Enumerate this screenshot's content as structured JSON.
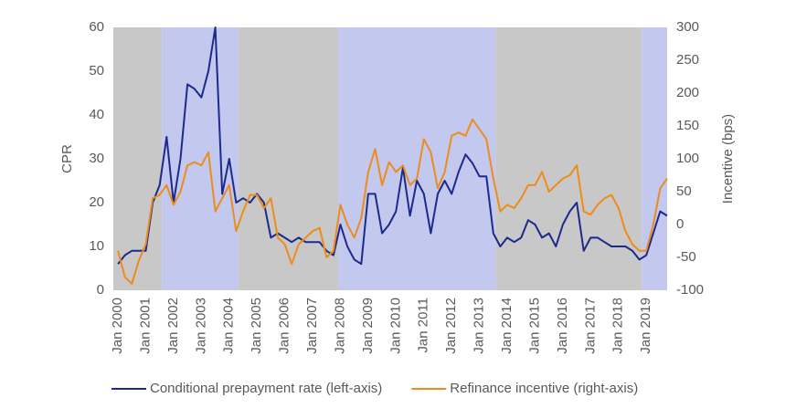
{
  "chart_data": {
    "type": "line",
    "y_label": "CPR",
    "y2_label": "Incentive (bps)",
    "x": [
      "2000-01",
      "2000-04",
      "2000-07",
      "2000-10",
      "2001-01",
      "2001-04",
      "2001-07",
      "2001-10",
      "2002-01",
      "2002-04",
      "2002-07",
      "2002-10",
      "2003-01",
      "2003-04",
      "2003-07",
      "2003-10",
      "2004-01",
      "2004-04",
      "2004-07",
      "2004-10",
      "2005-01",
      "2005-04",
      "2005-07",
      "2005-10",
      "2006-01",
      "2006-04",
      "2006-07",
      "2006-10",
      "2007-01",
      "2007-04",
      "2007-07",
      "2007-10",
      "2008-01",
      "2008-04",
      "2008-07",
      "2008-10",
      "2009-01",
      "2009-04",
      "2009-07",
      "2009-10",
      "2010-01",
      "2010-04",
      "2010-07",
      "2010-10",
      "2011-01",
      "2011-04",
      "2011-07",
      "2011-10",
      "2012-01",
      "2012-04",
      "2012-07",
      "2012-10",
      "2013-01",
      "2013-04",
      "2013-07",
      "2013-10",
      "2014-01",
      "2014-04",
      "2014-07",
      "2014-10",
      "2015-01",
      "2015-04",
      "2015-07",
      "2015-10",
      "2016-01",
      "2016-04",
      "2016-07",
      "2016-10",
      "2017-01",
      "2017-04",
      "2017-07",
      "2017-10",
      "2018-01",
      "2018-04",
      "2018-07",
      "2018-10",
      "2019-01",
      "2019-04",
      "2019-07",
      "2019-10"
    ],
    "series": [
      {
        "name": "Conditional prepayment rate (left-axis)",
        "color": "#1c2a8c",
        "values": [
          6,
          8,
          9,
          9,
          9,
          20,
          24,
          35,
          20,
          30,
          47,
          46,
          44,
          50,
          60,
          22,
          30,
          20,
          21,
          20,
          22,
          20,
          12,
          13,
          12,
          11,
          12,
          11,
          11,
          11,
          9,
          8,
          15,
          10,
          7,
          6,
          22,
          22,
          13,
          15,
          18,
          28,
          17,
          25,
          22,
          13,
          22,
          25,
          22,
          27,
          31,
          29,
          26,
          26,
          13,
          10,
          12,
          11,
          12,
          16,
          15,
          12,
          13,
          10,
          15,
          18,
          20,
          9,
          12,
          12,
          11,
          10,
          10,
          10,
          9,
          7,
          8,
          13,
          18,
          17
        ]
      },
      {
        "name": "Refinance incentive (right-axis)",
        "color": "#ed8c1c",
        "axis": "y2",
        "values": [
          -40,
          -80,
          -90,
          -55,
          -30,
          40,
          45,
          60,
          30,
          50,
          90,
          95,
          90,
          110,
          20,
          40,
          60,
          -10,
          20,
          45,
          45,
          25,
          40,
          -20,
          -30,
          -60,
          -30,
          -20,
          -10,
          -5,
          -50,
          -40,
          30,
          0,
          -20,
          10,
          80,
          115,
          60,
          95,
          80,
          90,
          60,
          70,
          130,
          110,
          55,
          80,
          135,
          140,
          135,
          160,
          145,
          130,
          70,
          20,
          30,
          25,
          40,
          60,
          60,
          80,
          50,
          60,
          70,
          75,
          90,
          20,
          15,
          30,
          40,
          45,
          25,
          -10,
          -30,
          -40,
          -40,
          0,
          55,
          70
        ]
      }
    ],
    "xlim": [
      "1999-11",
      "2019-10"
    ],
    "xticks": [
      {
        "value": "2000-01",
        "label": "Jan 2000"
      },
      {
        "value": "2001-01",
        "label": "Jan 2001"
      },
      {
        "value": "2002-01",
        "label": "Jan 2002"
      },
      {
        "value": "2003-01",
        "label": "Jan 2003"
      },
      {
        "value": "2004-01",
        "label": "Jan 2004"
      },
      {
        "value": "2005-01",
        "label": "Jan 2005"
      },
      {
        "value": "2006-01",
        "label": "Jan 2006"
      },
      {
        "value": "2007-01",
        "label": "Jan 2007"
      },
      {
        "value": "2008-01",
        "label": "Jan 2008"
      },
      {
        "value": "2009-01",
        "label": "Jan 2009"
      },
      {
        "value": "2010-01",
        "label": "Jan 2010"
      },
      {
        "value": "2011-01",
        "label": "Jan 2011"
      },
      {
        "value": "2012-01",
        "label": "Jan 2012"
      },
      {
        "value": "2013-01",
        "label": "Jan 2013"
      },
      {
        "value": "2014-01",
        "label": "Jan 2014"
      },
      {
        "value": "2015-01",
        "label": "Jan 2015"
      },
      {
        "value": "2016-01",
        "label": "Jan 2016"
      },
      {
        "value": "2017-01",
        "label": "Jan 2017"
      },
      {
        "value": "2018-01",
        "label": "Jan 2018"
      },
      {
        "value": "2019-01",
        "label": "Jan 2019"
      }
    ],
    "ylim": [
      0,
      60
    ],
    "yticks": [
      0,
      10,
      20,
      30,
      40,
      50,
      60
    ],
    "y2lim": [
      -100,
      300
    ],
    "y2ticks": [
      -100,
      -50,
      0,
      50,
      100,
      150,
      200,
      250,
      300
    ],
    "bands": [
      {
        "start": "1999-11",
        "end": "2001-08",
        "color": "#c8c8c8"
      },
      {
        "start": "2001-08",
        "end": "2004-05",
        "color": "#c3c8ee"
      },
      {
        "start": "2004-05",
        "end": "2007-12",
        "color": "#c8c8c8"
      },
      {
        "start": "2007-12",
        "end": "2013-08",
        "color": "#c3c8ee"
      },
      {
        "start": "2013-08",
        "end": "2018-11",
        "color": "#c8c8c8"
      },
      {
        "start": "2018-11",
        "end": "2019-10",
        "color": "#c3c8ee"
      }
    ],
    "legend": "bottom"
  }
}
